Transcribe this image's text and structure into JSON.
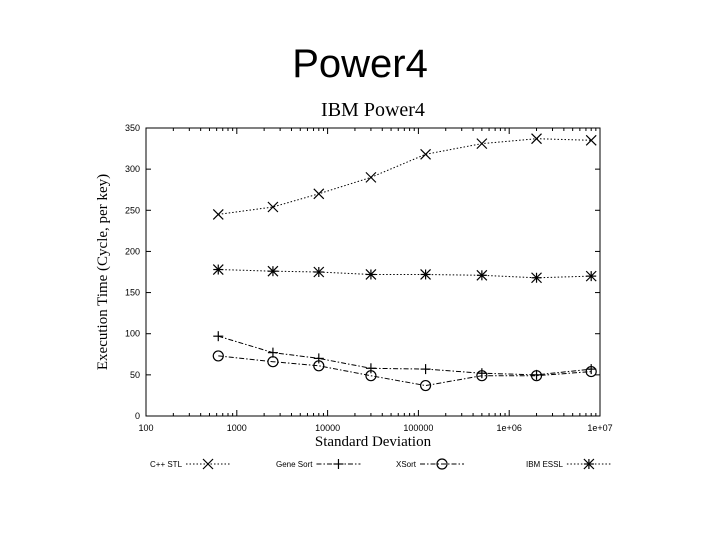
{
  "slide": {
    "title": "Power4"
  },
  "chart_data": {
    "type": "line",
    "title": "IBM Power4",
    "xlabel": "Standard Deviation",
    "ylabel": "Execution Time (Cycle, per key)",
    "x_scale": "log",
    "xlim": [
      100,
      10000000
    ],
    "ylim": [
      0,
      350
    ],
    "x_ticks": [
      "100",
      "1000",
      "10000",
      "100000",
      "1e+06",
      "1e+07"
    ],
    "y_ticks": [
      "0",
      "50",
      "100",
      "150",
      "200",
      "250",
      "300",
      "350"
    ],
    "legend_position": "bottom",
    "grid": false,
    "series": [
      {
        "name": "C++ STL",
        "marker": "x",
        "x": [
          625,
          2500,
          8000,
          30000,
          120000,
          500000,
          2000000,
          8000000
        ],
        "y": [
          245,
          254,
          270,
          290,
          318,
          331,
          337,
          335
        ]
      },
      {
        "name": "Gene Sort",
        "marker": "+",
        "x": [
          625,
          2500,
          8000,
          30000,
          120000,
          500000,
          2000000,
          8000000
        ],
        "y": [
          97,
          77,
          70,
          58,
          57,
          52,
          50,
          57
        ]
      },
      {
        "name": "XSort",
        "marker": "circle",
        "x": [
          625,
          2500,
          8000,
          30000,
          120000,
          500000,
          2000000,
          8000000
        ],
        "y": [
          73,
          66,
          61,
          49,
          37,
          49,
          49,
          54
        ]
      },
      {
        "name": "IBM ESSL",
        "marker": "asterisk",
        "x": [
          625,
          2500,
          8000,
          30000,
          120000,
          500000,
          2000000,
          8000000
        ],
        "y": [
          178,
          176,
          175,
          172,
          172,
          171,
          168,
          170
        ]
      }
    ]
  }
}
